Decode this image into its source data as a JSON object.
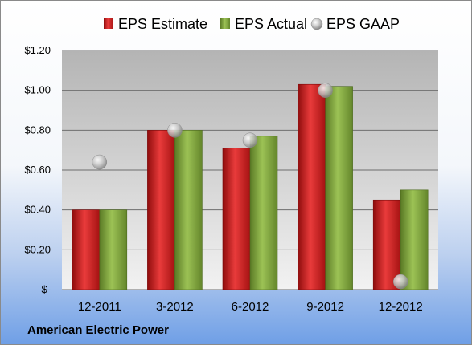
{
  "company": "American Electric Power",
  "chart_data": {
    "type": "bar",
    "categories": [
      "12-2011",
      "3-2012",
      "6-2012",
      "9-2012",
      "12-2012"
    ],
    "series": [
      {
        "name": "EPS Estimate",
        "type": "bar",
        "color": "#c81a1a",
        "values": [
          0.4,
          0.8,
          0.71,
          1.03,
          0.45
        ]
      },
      {
        "name": "EPS Actual",
        "type": "bar",
        "color": "#7fa33a",
        "values": [
          0.4,
          0.8,
          0.77,
          1.02,
          0.5
        ]
      },
      {
        "name": "EPS GAAP",
        "type": "scatter",
        "color": "#c8c8c8",
        "values": [
          0.64,
          0.8,
          0.75,
          1.0,
          0.04
        ]
      }
    ],
    "yticks": [
      "$-",
      "$0.20",
      "$0.40",
      "$0.60",
      "$0.80",
      "$1.00",
      "$1.20"
    ],
    "ylim": [
      0,
      1.2
    ],
    "grid": true,
    "legend_position": "top"
  }
}
